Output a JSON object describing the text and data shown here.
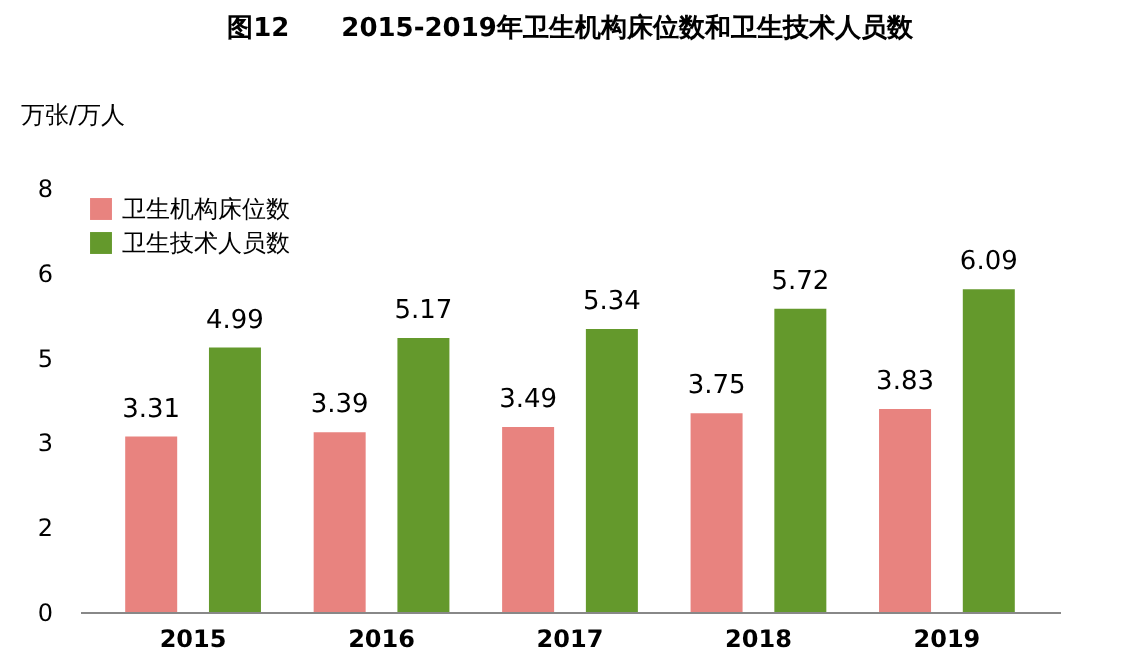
{
  "chart_data": {
    "type": "bar",
    "title": "图12　　2015-2019年卫生机构床位数和卫生技术人员数",
    "ylabel": "万张/万人",
    "categories": [
      "2015",
      "2016",
      "2017",
      "2018",
      "2019"
    ],
    "series": [
      {
        "name": "卫生机构床位数",
        "color": "#e8837f",
        "values": [
          3.31,
          3.39,
          3.49,
          3.75,
          3.83
        ]
      },
      {
        "name": "卫生技术人员数",
        "color": "#64992c",
        "values": [
          4.99,
          5.17,
          5.34,
          5.72,
          6.09
        ]
      }
    ],
    "ylim": [
      0,
      8
    ],
    "yticks": [
      0,
      {
        "value": 1.6,
        "label": "2"
      },
      {
        "value": 3.2,
        "label": "3"
      },
      {
        "value": 4.8,
        "label": "5"
      },
      {
        "value": 6.4,
        "label": "6"
      },
      8
    ],
    "data_labels": true,
    "legend": "top left",
    "grid": false
  }
}
